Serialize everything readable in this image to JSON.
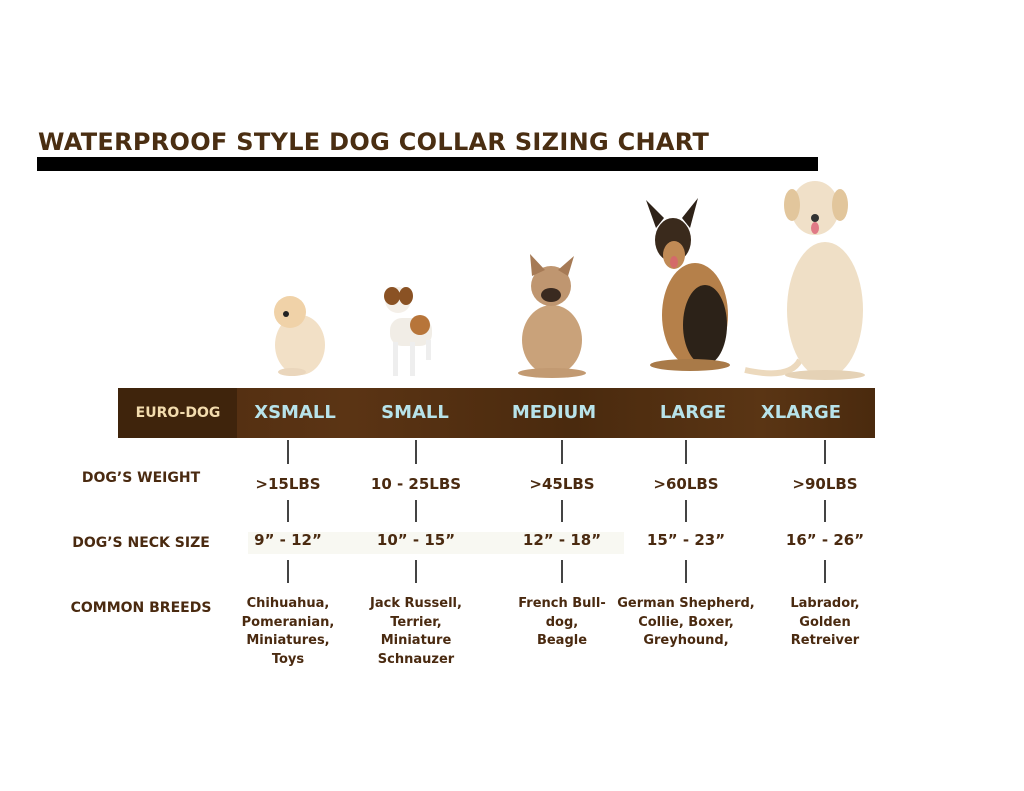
{
  "title": "WATERPROOF STYLE DOG COLLAR SIZING CHART",
  "band": {
    "euro_label": "EURO-DOG",
    "sizes": [
      "XSMALL",
      "SMALL",
      "MEDIUM",
      "LARGE",
      "XLARGE"
    ],
    "colors": {
      "band": "#4e2c10",
      "size_text": "#b7e3ea",
      "euro_text": "#f3dcae"
    }
  },
  "rows": {
    "weight_label": "DOG’S WEIGHT",
    "neck_label": "DOG’S NECK SIZE",
    "breeds_label": "COMMON BREEDS"
  },
  "columns": [
    {
      "weight": ">15LBS",
      "neck": "9” - 12”",
      "breeds": [
        "Chihuahua,",
        "Pomeranian,",
        "Miniatures,",
        "Toys"
      ],
      "dog": "pomeranian"
    },
    {
      "weight": "10 - 25LBS",
      "neck": "10” - 15”",
      "breeds": [
        "Jack Russell,",
        "Terrier,",
        "Miniature",
        "Schnauzer"
      ],
      "dog": "jack-russell"
    },
    {
      "weight": ">45LBS",
      "neck": "12” - 18”",
      "breeds": [
        "French Bull-",
        "dog,",
        "Beagle"
      ],
      "dog": "french-bulldog"
    },
    {
      "weight": ">60LBS",
      "neck": "15” - 23”",
      "breeds": [
        "German Shepherd,",
        "Collie, Boxer,",
        "Greyhound,"
      ],
      "dog": "german-shepherd"
    },
    {
      "weight": ">90LBS",
      "neck": "16” - 26”",
      "breeds": [
        "Labrador,",
        "Golden",
        "Retreiver"
      ],
      "dog": "labrador"
    }
  ]
}
